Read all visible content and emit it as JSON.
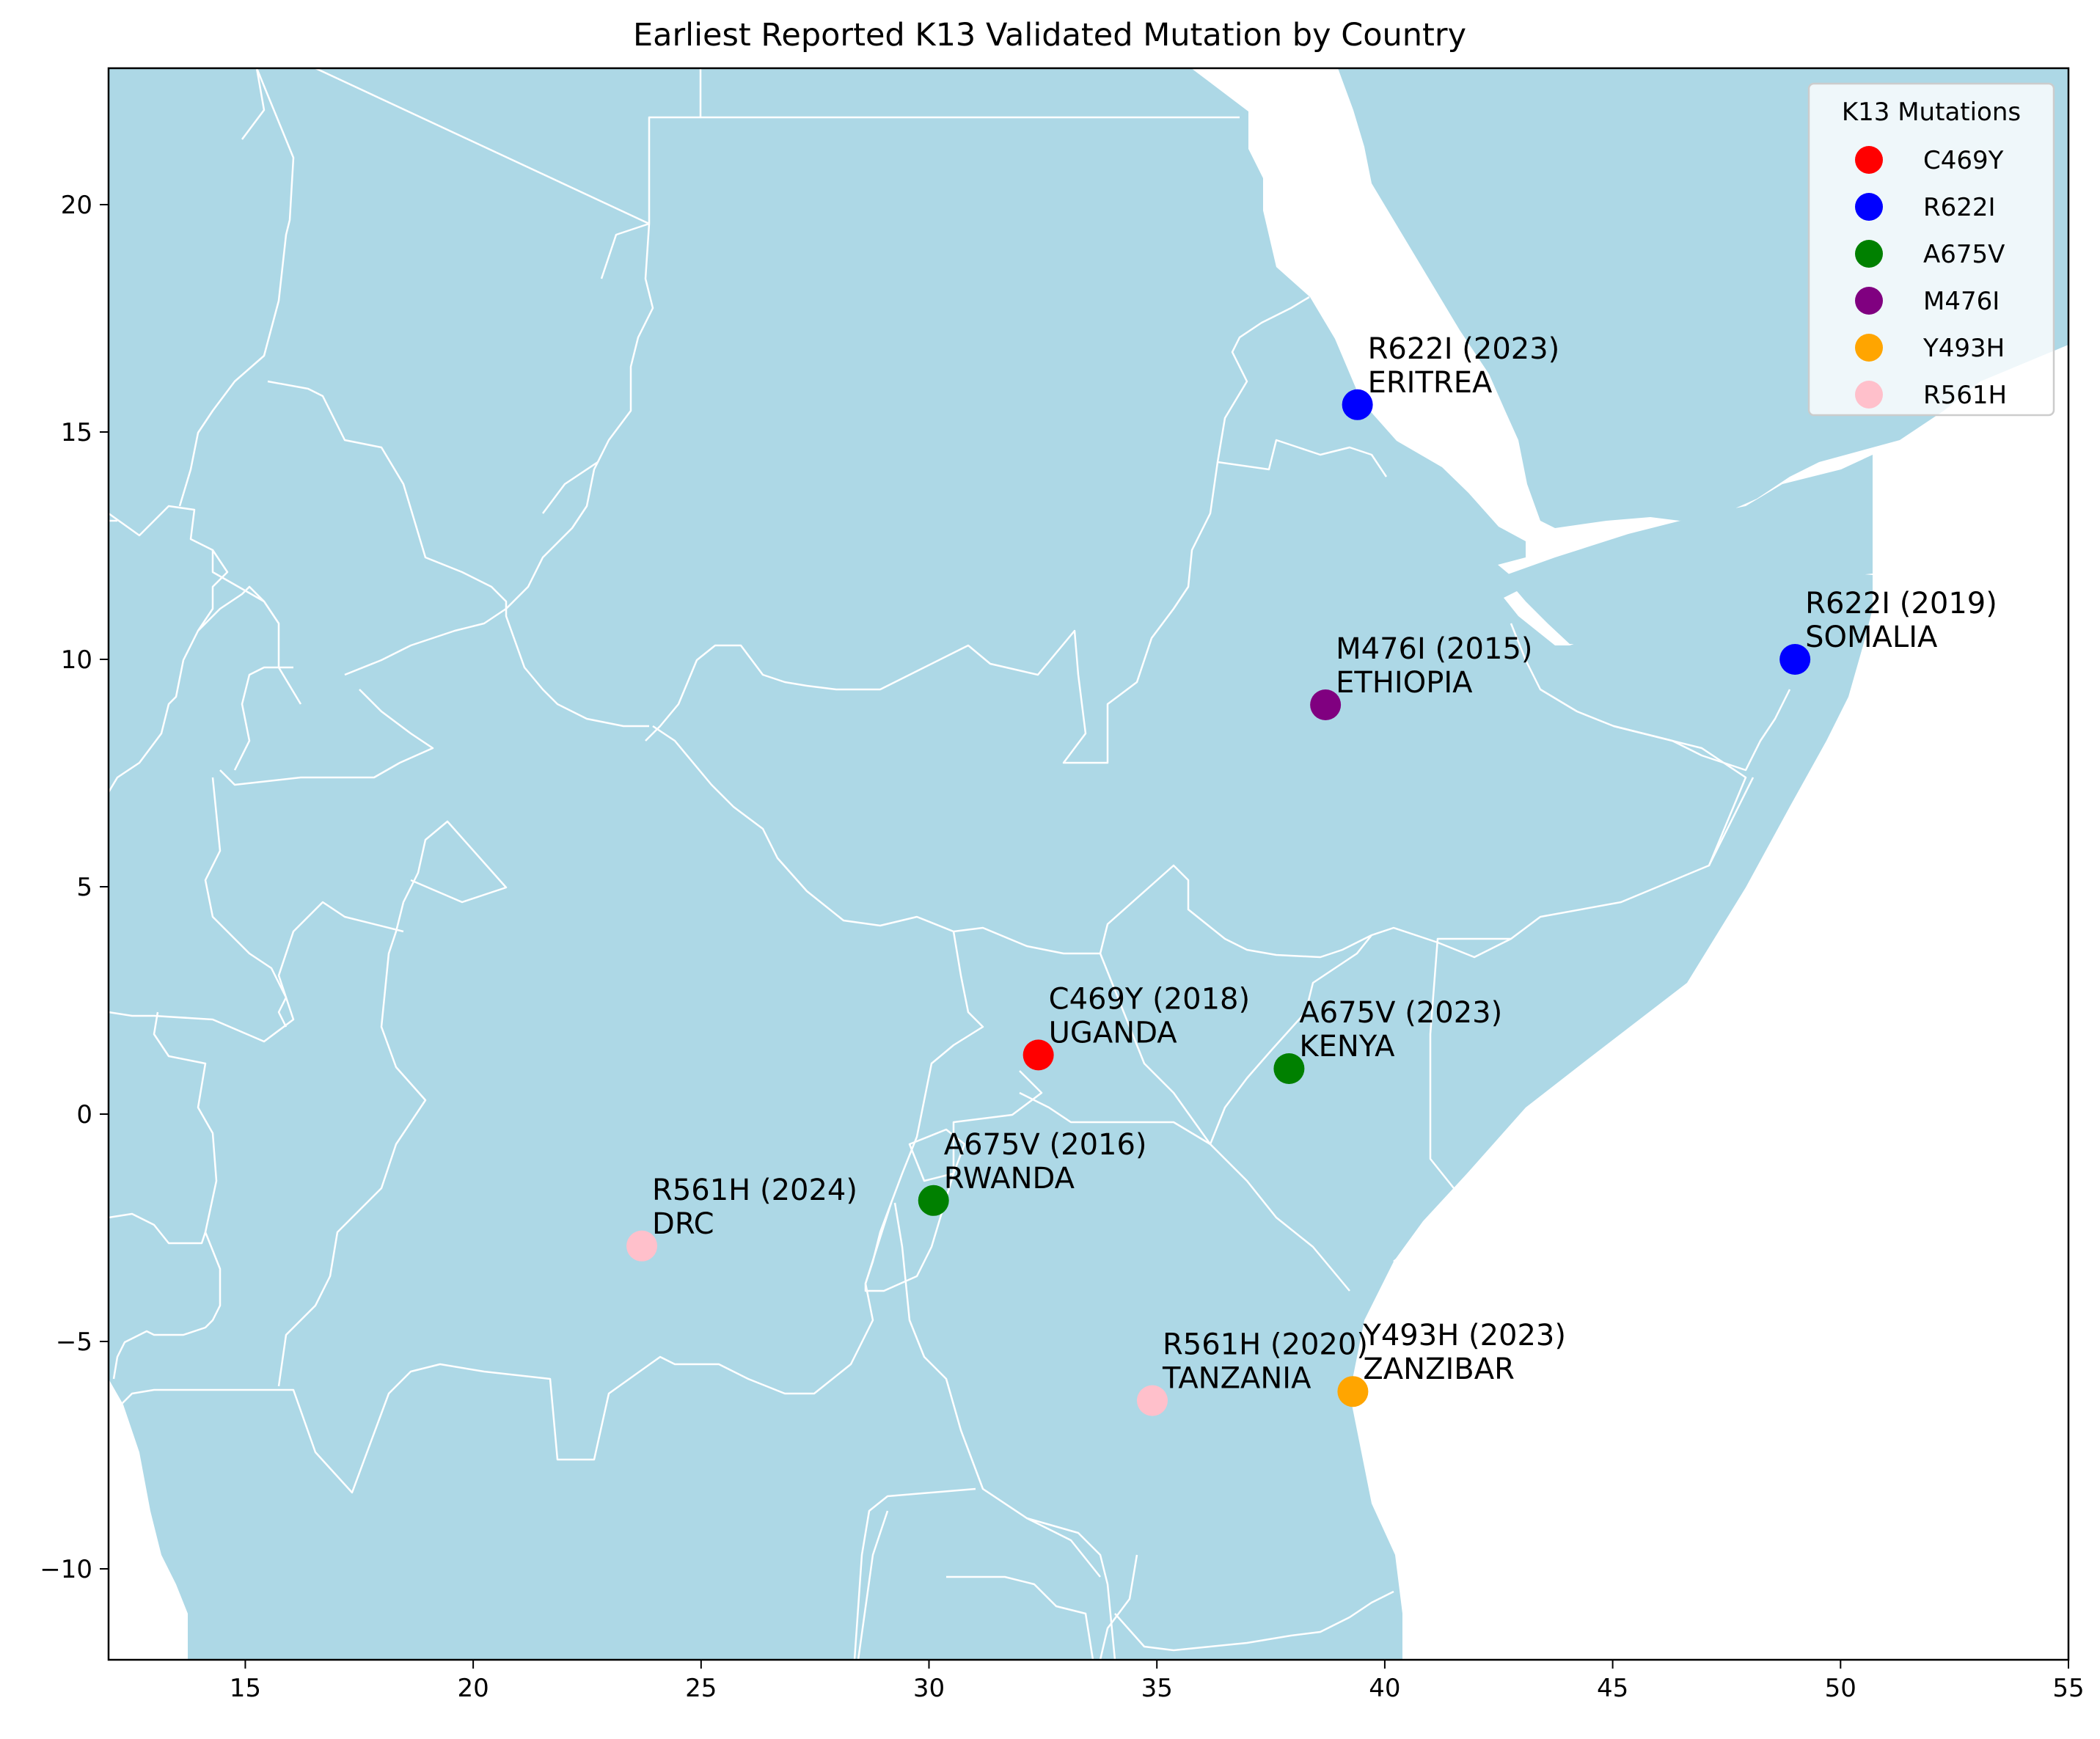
{
  "chart_data": {
    "type": "scatter",
    "title": "Earliest Reported K13 Validated Mutation by Country",
    "xlim": [
      12,
      55
    ],
    "ylim": [
      -12,
      23
    ],
    "xticks": [
      15,
      20,
      25,
      30,
      35,
      40,
      45,
      50,
      55
    ],
    "yticks": [
      -10,
      -5,
      0,
      5,
      10,
      15,
      20
    ],
    "grid": false,
    "legend": {
      "title": "K13 Mutations",
      "placement": "top-right",
      "entries": [
        {
          "label": "C469Y",
          "color": "#ff0000"
        },
        {
          "label": "R622I",
          "color": "#0000ff"
        },
        {
          "label": "A675V",
          "color": "#008000"
        },
        {
          "label": "M476I",
          "color": "#800080"
        },
        {
          "label": "Y493H",
          "color": "#ffa500"
        },
        {
          "label": "R561H",
          "color": "#ffc0cb"
        }
      ]
    },
    "points": [
      {
        "mutation": "R622I",
        "year": "R622I (2023)",
        "country": "ERITREA",
        "x": 39.4,
        "y": 15.6,
        "color": "#0000ff"
      },
      {
        "mutation": "R622I",
        "year": "R622I (2019)",
        "country": "SOMALIA",
        "x": 49.0,
        "y": 10.0,
        "color": "#0000ff"
      },
      {
        "mutation": "M476I",
        "year": "M476I (2015)",
        "country": "ETHIOPIA",
        "x": 38.7,
        "y": 9.0,
        "color": "#800080"
      },
      {
        "mutation": "C469Y",
        "year": "C469Y (2018)",
        "country": "UGANDA",
        "x": 32.4,
        "y": 1.3,
        "color": "#ff0000"
      },
      {
        "mutation": "A675V",
        "year": "A675V (2023)",
        "country": "KENYA",
        "x": 37.9,
        "y": 1.0,
        "color": "#008000"
      },
      {
        "mutation": "A675V",
        "year": "A675V (2016)",
        "country": "RWANDA",
        "x": 30.1,
        "y": -1.9,
        "color": "#008000"
      },
      {
        "mutation": "R561H",
        "year": "R561H (2024)",
        "country": "DRC",
        "x": 23.7,
        "y": -2.9,
        "color": "#ffc0cb"
      },
      {
        "mutation": "R561H",
        "year": "R561H (2020)",
        "country": "TANZANIA",
        "x": 34.9,
        "y": -6.3,
        "color": "#ffc0cb"
      },
      {
        "mutation": "Y493H",
        "year": "Y493H (2023)",
        "country": "ZANZIBAR",
        "x": 39.3,
        "y": -6.1,
        "color": "#ffa500"
      }
    ]
  },
  "map_colors": {
    "land": "#add8e6",
    "border": "#ffffff",
    "sea": "#ffffff"
  }
}
